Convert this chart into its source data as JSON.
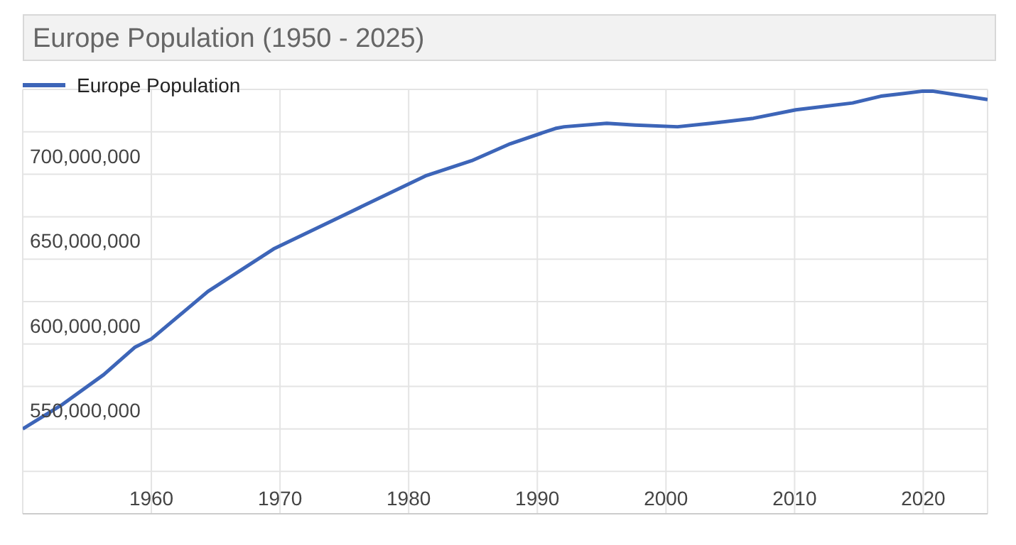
{
  "chart_data": {
    "type": "line",
    "title": "Europe Population (1950 - 2025)",
    "x": [
      1950,
      1953,
      1956.3,
      1958.7,
      1960,
      1964.4,
      1969.5,
      1974.7,
      1981.3,
      1984.9,
      1987.9,
      1991.4,
      1992.1,
      1995.4,
      1997.6,
      2000.9,
      2003.5,
      2006.8,
      2010.1,
      2014.5,
      2016.7,
      2020,
      2020.7,
      2023.3,
      2025
    ],
    "series": [
      {
        "name": "Europe Population",
        "color": "#3d65b8",
        "values": [
          550000000,
          564000000,
          582000000,
          598000000,
          603000000,
          631000000,
          656000000,
          675000000,
          699000000,
          708000000,
          718000000,
          727000000,
          728000000,
          730000000,
          729000000,
          728000000,
          730000000,
          733000000,
          738000000,
          742000000,
          746000000,
          749000000,
          749000000,
          746000000,
          744000000
        ]
      }
    ],
    "xlim": [
      1950,
      2025
    ],
    "xticks": [
      1960,
      1970,
      1980,
      1990,
      2000,
      2010,
      2020
    ],
    "ylim": [
      500000000,
      750000000
    ],
    "yticks": [
      {
        "value": 525000000,
        "label": null
      },
      {
        "value": 550000000,
        "label": "550,000,000"
      },
      {
        "value": 575000000,
        "label": null
      },
      {
        "value": 600000000,
        "label": "600,000,000"
      },
      {
        "value": 625000000,
        "label": null
      },
      {
        "value": 650000000,
        "label": "650,000,000"
      },
      {
        "value": 675000000,
        "label": null
      },
      {
        "value": 700000000,
        "label": "700,000,000"
      },
      {
        "value": 725000000,
        "label": null
      }
    ],
    "grid": true,
    "legend": "top left",
    "marker": "none",
    "line_style": "solid"
  }
}
